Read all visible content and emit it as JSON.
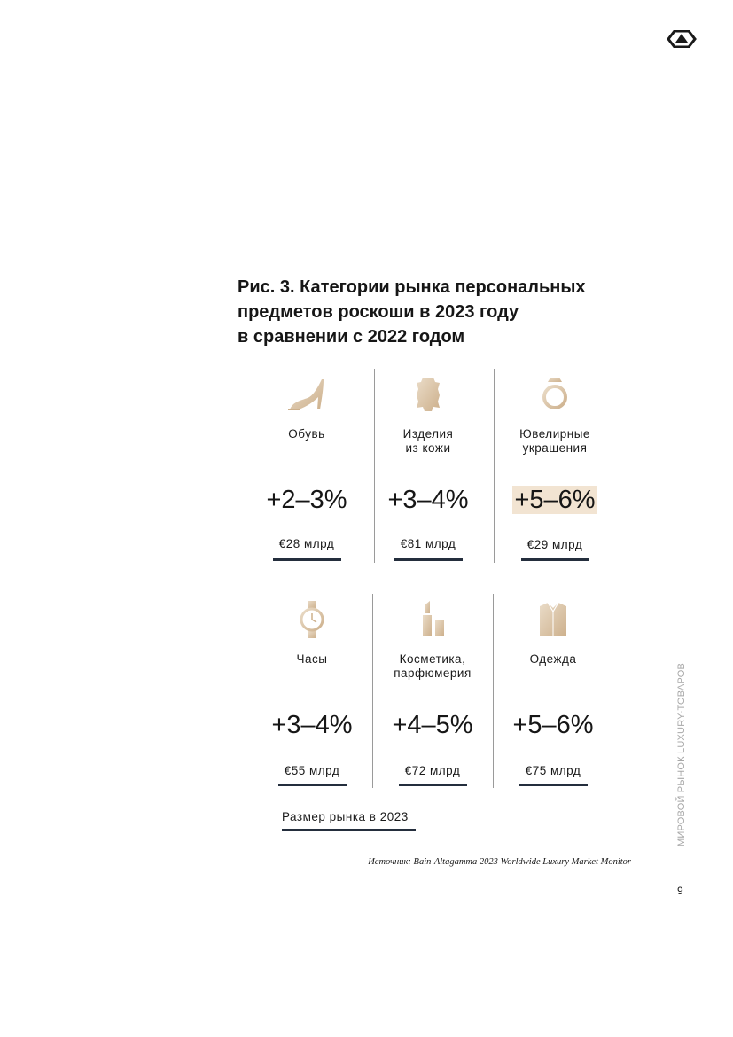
{
  "header": {
    "logo_icon": "brand-logo-icon"
  },
  "figure": {
    "title_lines": [
      "Рис. 3. Категории рынка персональных",
      "предметов роскоши в 2023 году",
      "в сравнении с 2022 годом"
    ]
  },
  "categories": [
    {
      "icon": "high-heel-shoe-icon",
      "label_lines": [
        "Обувь"
      ],
      "growth": "+2–3%",
      "size": "€28 млрд",
      "highlight": false
    },
    {
      "icon": "leather-hide-icon",
      "label_lines": [
        "Изделия",
        "из кожи"
      ],
      "growth": "+3–4%",
      "size": "€81 млрд",
      "highlight": false
    },
    {
      "icon": "ring-icon",
      "label_lines": [
        "Ювелирные",
        "украшения"
      ],
      "growth": "+5–6%",
      "size": "€29 млрд",
      "highlight": true
    },
    {
      "icon": "wristwatch-icon",
      "label_lines": [
        "Часы"
      ],
      "growth": "+3–4%",
      "size": "€55 млрд",
      "highlight": false
    },
    {
      "icon": "lipstick-icon",
      "label_lines": [
        "Косметика,",
        "парфюмерия"
      ],
      "growth": "+4–5%",
      "size": "€72 млрд",
      "highlight": false
    },
    {
      "icon": "shirt-icon",
      "label_lines": [
        "Одежда"
      ],
      "growth": "+5–6%",
      "size": "€75 млрд",
      "highlight": false
    }
  ],
  "legend": {
    "label": "Размер рынка в 2023"
  },
  "source": "Источник: Bain-Altagamma 2023 Worldwide Luxury Market Monitor",
  "sidebar": {
    "text": "МИРОВОЙ РЫНОК LUXURY-ТОВАРОВ"
  },
  "page_number": "9",
  "colors": {
    "accent_gold": "#d9c3a5",
    "highlight_bg": "#f2e4d2",
    "bar": "#242e3d"
  }
}
